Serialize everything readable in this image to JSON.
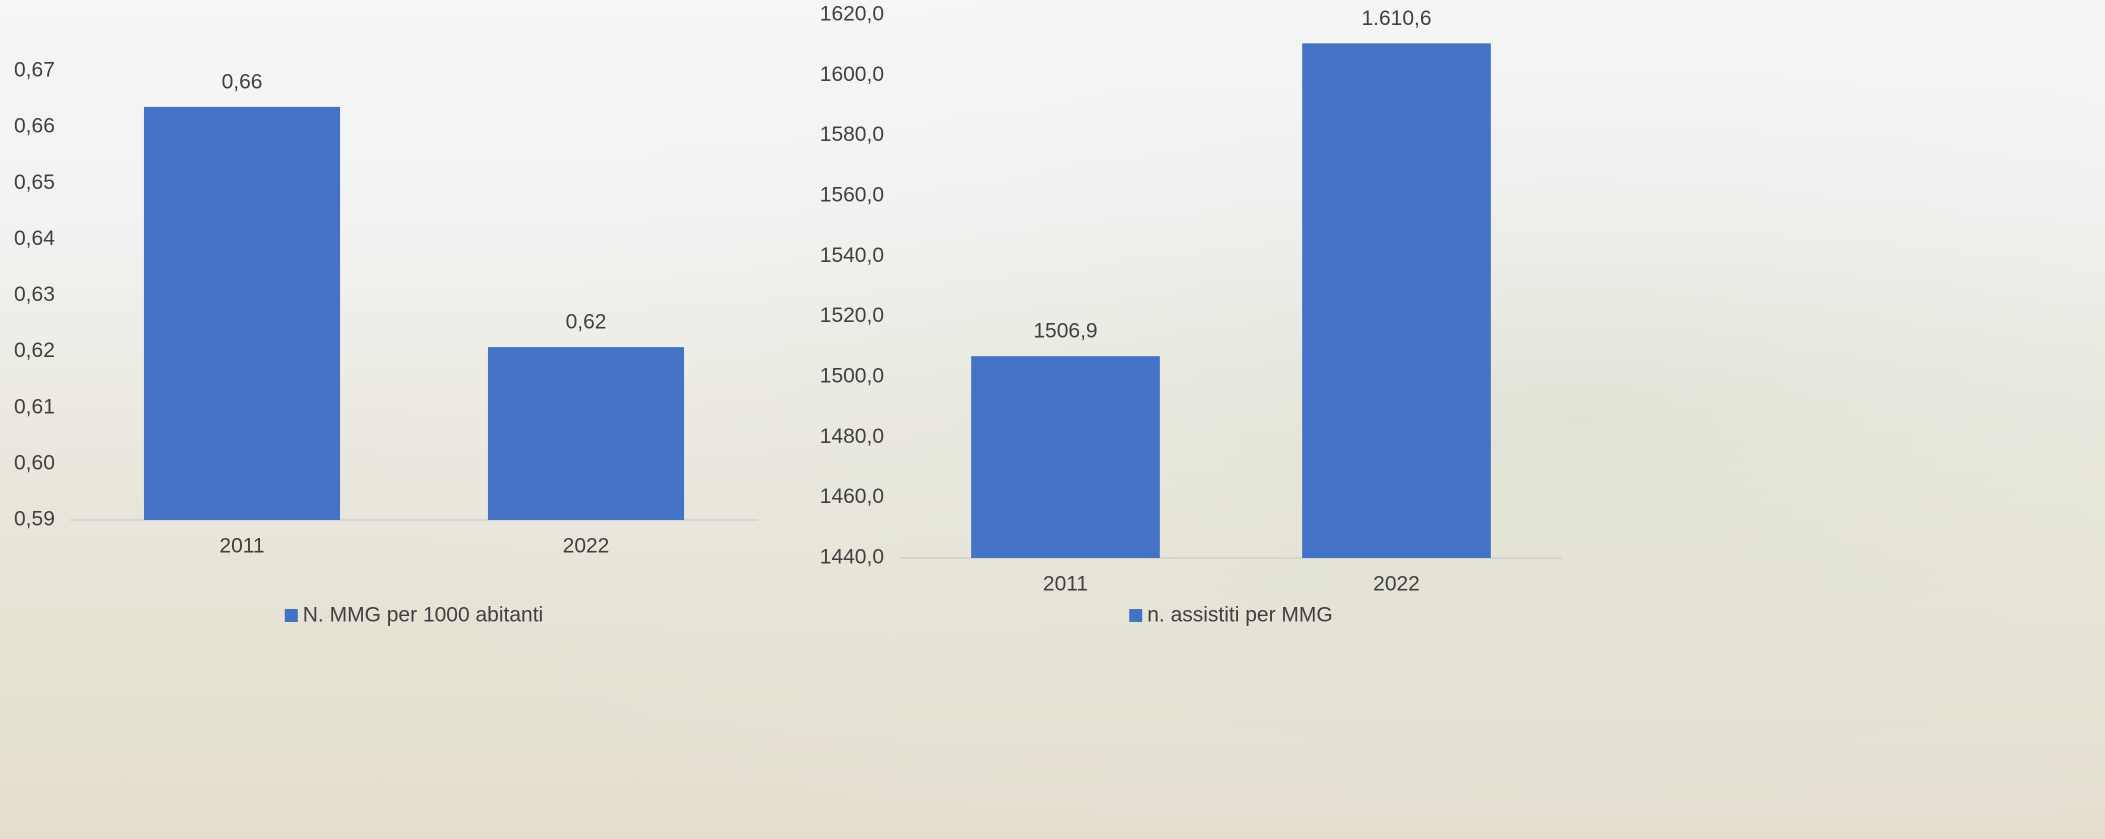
{
  "chart_data": [
    {
      "type": "bar",
      "categories": [
        "2011",
        "2022"
      ],
      "series": [
        {
          "name": "N. MMG per 1000 abitanti",
          "color": "#4472c4",
          "values": [
            0.6636,
            0.6208
          ],
          "value_labels": [
            "0,66",
            "0,62"
          ]
        }
      ],
      "ylim": [
        0.59,
        0.67
      ],
      "yticks": [
        {
          "value": 0.59,
          "label": "0,59"
        },
        {
          "value": 0.6,
          "label": "0,60"
        },
        {
          "value": 0.61,
          "label": "0,61"
        },
        {
          "value": 0.62,
          "label": "0,62"
        },
        {
          "value": 0.63,
          "label": "0,63"
        },
        {
          "value": 0.64,
          "label": "0,64"
        },
        {
          "value": 0.65,
          "label": "0,65"
        },
        {
          "value": 0.66,
          "label": "0,66"
        },
        {
          "value": 0.67,
          "label": "0,67"
        }
      ],
      "grid": false,
      "legend": "bottom"
    },
    {
      "type": "bar",
      "categories": [
        "2011",
        "2022"
      ],
      "series": [
        {
          "name": "n. assistiti per MMG",
          "color": "#4472c4",
          "values": [
            1506.9,
            1610.6
          ],
          "value_labels": [
            "1506,9",
            "1.610,6"
          ]
        }
      ],
      "ylim": [
        1440,
        1620
      ],
      "yticks": [
        {
          "value": 1440,
          "label": "1440,0"
        },
        {
          "value": 1460,
          "label": "1460,0"
        },
        {
          "value": 1480,
          "label": "1480,0"
        },
        {
          "value": 1500,
          "label": "1500,0"
        },
        {
          "value": 1520,
          "label": "1520,0"
        },
        {
          "value": 1540,
          "label": "1540,0"
        },
        {
          "value": 1560,
          "label": "1560,0"
        },
        {
          "value": 1580,
          "label": "1580,0"
        },
        {
          "value": 1600,
          "label": "1600,0"
        },
        {
          "value": 1620,
          "label": "1620,0"
        }
      ],
      "grid": false,
      "legend": "bottom"
    }
  ]
}
